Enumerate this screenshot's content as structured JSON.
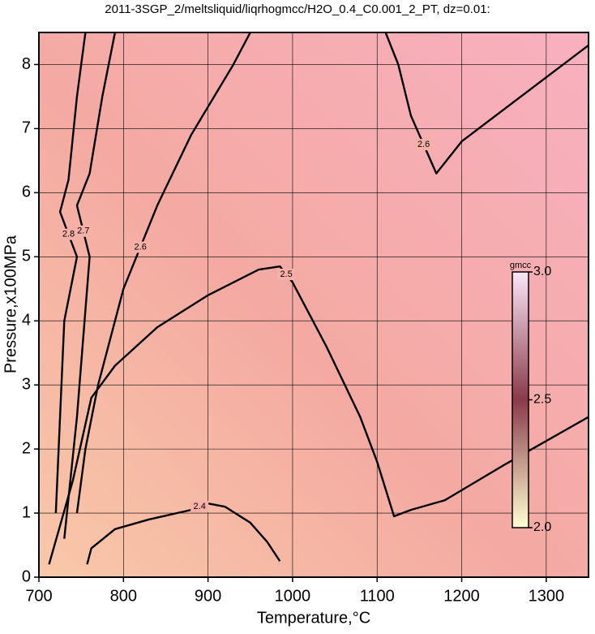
{
  "chart_data": {
    "type": "contour",
    "title": "2011-3SGP_2/meltsliquid/liqrhogmcc/H2O_0.4_C0.001_2_PT, dz=0.01:",
    "x_label": "Temperature,°C",
    "y_label": "Pressure,x100MPa",
    "xlim": [
      700,
      1350
    ],
    "ylim": [
      0,
      8.5
    ],
    "xticks": [
      700,
      800,
      900,
      1000,
      1100,
      1200,
      1300
    ],
    "yticks": [
      0,
      1,
      2,
      3,
      4,
      5,
      6,
      7,
      8
    ],
    "grid": true,
    "contours": [
      {
        "level": 2.4,
        "x": [
          757,
          762,
          790,
          830,
          880,
          900,
          920,
          950,
          970,
          985
        ],
        "y": [
          0.2,
          0.45,
          0.75,
          0.9,
          1.05,
          1.15,
          1.1,
          0.85,
          0.55,
          0.25
        ]
      },
      {
        "level": 2.5,
        "x": [
          712,
          740,
          762,
          790,
          840,
          900,
          960,
          985,
          1000,
          1040,
          1080,
          1100,
          1120,
          1140,
          1180,
          1250,
          1350
        ],
        "y": [
          0.2,
          1.5,
          2.8,
          3.3,
          3.9,
          4.4,
          4.8,
          4.85,
          4.6,
          3.6,
          2.5,
          1.8,
          0.95,
          1.05,
          1.2,
          1.75,
          2.5
        ]
      },
      {
        "level": 2.6,
        "x": [
          745,
          755,
          770,
          800,
          840,
          880,
          930,
          950
        ],
        "y": [
          1.0,
          2.0,
          3.0,
          4.5,
          5.8,
          6.9,
          8.0,
          8.5
        ]
      },
      {
        "level": 2.6,
        "x": [
          1110,
          1125,
          1140,
          1170,
          1200,
          1280,
          1350
        ],
        "y": [
          8.5,
          8.0,
          7.2,
          6.3,
          6.8,
          7.6,
          8.3
        ]
      },
      {
        "level": 2.7,
        "x": [
          730,
          745,
          760,
          745,
          760,
          775,
          790
        ],
        "y": [
          0.6,
          2.5,
          5.0,
          5.8,
          6.3,
          7.5,
          8.5
        ]
      },
      {
        "level": 2.8,
        "x": [
          720,
          730,
          745,
          725,
          735,
          745,
          755
        ],
        "y": [
          1.0,
          4.0,
          5.0,
          5.7,
          6.2,
          7.5,
          8.5
        ]
      }
    ],
    "colorbar": {
      "label": "gmcc",
      "clim": [
        2.0,
        3.0
      ],
      "ticks": [
        {
          "value": 2.0,
          "label": "2.0"
        },
        2.5,
        {
          "value": 3.0,
          "label": "3.0"
        }
      ],
      "colors": [
        "#ffffd2",
        "#8a3a4a",
        "#fbe6f6"
      ]
    }
  }
}
